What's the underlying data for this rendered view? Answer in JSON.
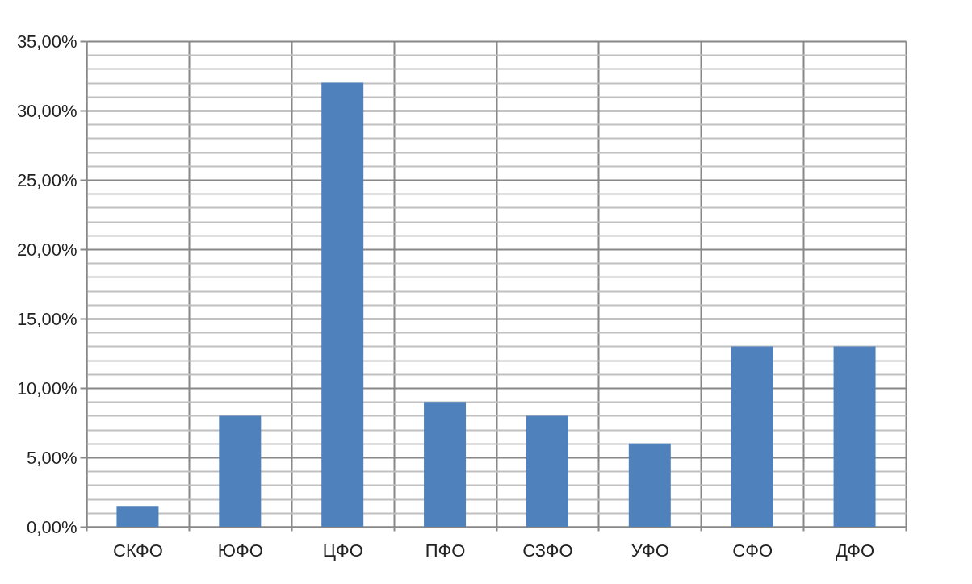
{
  "chart_data": {
    "type": "bar",
    "categories": [
      "СКФО",
      "ЮФО",
      "ЦФО",
      "ПФО",
      "СЗФО",
      "УФО",
      "СФО",
      "ДФО"
    ],
    "values": [
      1.5,
      8,
      32,
      9,
      8,
      6,
      13,
      13
    ],
    "color": "#4f81bd",
    "ylim": [
      0,
      35
    ],
    "yticks": [
      {
        "value": 0,
        "label": "0,00%"
      },
      {
        "value": 1,
        "label": null
      },
      {
        "value": 2,
        "label": null
      },
      {
        "value": 3,
        "label": null
      },
      {
        "value": 4,
        "label": null
      },
      {
        "value": 5,
        "label": "5,00%"
      },
      {
        "value": 6,
        "label": null
      },
      {
        "value": 7,
        "label": null
      },
      {
        "value": 8,
        "label": null
      },
      {
        "value": 9,
        "label": null
      },
      {
        "value": 10,
        "label": "10,00%"
      },
      {
        "value": 11,
        "label": null
      },
      {
        "value": 12,
        "label": null
      },
      {
        "value": 13,
        "label": null
      },
      {
        "value": 14,
        "label": null
      },
      {
        "value": 15,
        "label": "15,00%"
      },
      {
        "value": 16,
        "label": null
      },
      {
        "value": 17,
        "label": null
      },
      {
        "value": 18,
        "label": null
      },
      {
        "value": 19,
        "label": null
      },
      {
        "value": 20,
        "label": "20,00%"
      },
      {
        "value": 21,
        "label": null
      },
      {
        "value": 22,
        "label": null
      },
      {
        "value": 23,
        "label": null
      },
      {
        "value": 24,
        "label": null
      },
      {
        "value": 25,
        "label": "25,00%"
      },
      {
        "value": 26,
        "label": null
      },
      {
        "value": 27,
        "label": null
      },
      {
        "value": 28,
        "label": null
      },
      {
        "value": 29,
        "label": null
      },
      {
        "value": 30,
        "label": "30,00%"
      },
      {
        "value": 31,
        "label": null
      },
      {
        "value": 32,
        "label": null
      },
      {
        "value": 33,
        "label": null
      },
      {
        "value": 34,
        "label": null
      },
      {
        "value": 35,
        "label": "35,00%"
      }
    ],
    "grid": true
  }
}
